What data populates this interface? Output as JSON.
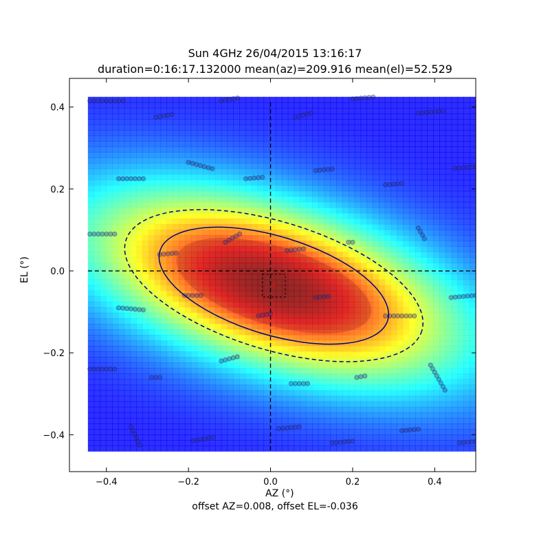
{
  "chart_data": {
    "type": "heatmap",
    "title": "Sun 4GHz 26/04/2015 13:16:17",
    "subtitle": "duration=0:16:17.132000 mean(az)=209.916 mean(el)=52.529",
    "xlabel": "AZ (°)",
    "ylabel": "EL (°)",
    "footer": "offset AZ=0.008, offset EL=-0.036",
    "xlim": [
      -0.49,
      0.5
    ],
    "ylim": [
      -0.49,
      0.47
    ],
    "xticks": [
      "−0.4",
      "−0.2",
      "0.0",
      "0.2",
      "0.4"
    ],
    "xtick_values": [
      -0.4,
      -0.2,
      0.0,
      0.2,
      0.4
    ],
    "yticks": [
      "−0.4",
      "−0.2",
      "0.0",
      "0.2",
      "0.4"
    ],
    "ytick_values": [
      -0.4,
      -0.2,
      0.0,
      0.2,
      0.4
    ],
    "heatmap_extent": {
      "x": [
        -0.445,
        0.5
      ],
      "y": [
        -0.44,
        0.425
      ]
    },
    "colormap": "jet",
    "beam_fit": {
      "center": [
        0.008,
        -0.036
      ],
      "semi_major": 0.29,
      "semi_minor": 0.12,
      "angle_deg": -17
    },
    "contours": [
      {
        "name": "half-power",
        "scale": 1.0,
        "style": "solid",
        "color": "#00007f"
      },
      {
        "name": "outer",
        "scale": 1.3,
        "style": "dashed",
        "color": "#00007f"
      }
    ],
    "crosshair": {
      "x": 0.0,
      "y": 0.0
    },
    "offset_marker": {
      "x": 0.008,
      "y": -0.036,
      "box_half": 0.028,
      "color": "#ff0000"
    },
    "scan_points": [
      {
        "x": -0.44,
        "y": 0.415,
        "angle": 0,
        "n": 9
      },
      {
        "x": -0.12,
        "y": 0.415,
        "angle": 10,
        "n": 5
      },
      {
        "x": -0.28,
        "y": 0.375,
        "angle": 10,
        "n": 5
      },
      {
        "x": 0.06,
        "y": 0.375,
        "angle": 15,
        "n": 5
      },
      {
        "x": 0.2,
        "y": 0.42,
        "angle": 5,
        "n": 6
      },
      {
        "x": 0.36,
        "y": 0.385,
        "angle": 5,
        "n": 7
      },
      {
        "x": -0.2,
        "y": 0.265,
        "angle": -15,
        "n": 7
      },
      {
        "x": -0.37,
        "y": 0.225,
        "angle": 0,
        "n": 7
      },
      {
        "x": -0.06,
        "y": 0.225,
        "angle": 5,
        "n": 5
      },
      {
        "x": 0.11,
        "y": 0.245,
        "angle": 5,
        "n": 5
      },
      {
        "x": 0.28,
        "y": 0.21,
        "angle": 5,
        "n": 5
      },
      {
        "x": 0.45,
        "y": 0.25,
        "angle": 5,
        "n": 8
      },
      {
        "x": -0.44,
        "y": 0.09,
        "angle": 0,
        "n": 7
      },
      {
        "x": -0.11,
        "y": 0.07,
        "angle": 30,
        "n": 5
      },
      {
        "x": -0.27,
        "y": 0.04,
        "angle": 5,
        "n": 5
      },
      {
        "x": 0.04,
        "y": 0.05,
        "angle": 5,
        "n": 5
      },
      {
        "x": 0.19,
        "y": 0.07,
        "angle": 0,
        "n": 2
      },
      {
        "x": 0.36,
        "y": 0.105,
        "angle": -60,
        "n": 4
      },
      {
        "x": -0.37,
        "y": -0.09,
        "angle": -5,
        "n": 7
      },
      {
        "x": -0.21,
        "y": -0.06,
        "angle": 0,
        "n": 5
      },
      {
        "x": -0.03,
        "y": -0.11,
        "angle": 10,
        "n": 4
      },
      {
        "x": 0.11,
        "y": -0.065,
        "angle": 5,
        "n": 4
      },
      {
        "x": 0.28,
        "y": -0.11,
        "angle": 0,
        "n": 8
      },
      {
        "x": 0.44,
        "y": -0.065,
        "angle": 5,
        "n": 8
      },
      {
        "x": -0.44,
        "y": -0.24,
        "angle": 0,
        "n": 7
      },
      {
        "x": -0.29,
        "y": -0.26,
        "angle": 0,
        "n": 3
      },
      {
        "x": -0.12,
        "y": -0.22,
        "angle": 15,
        "n": 5
      },
      {
        "x": 0.05,
        "y": -0.275,
        "angle": 0,
        "n": 5
      },
      {
        "x": 0.21,
        "y": -0.26,
        "angle": 10,
        "n": 3
      },
      {
        "x": 0.39,
        "y": -0.23,
        "angle": -60,
        "n": 8
      },
      {
        "x": -0.34,
        "y": -0.38,
        "angle": -65,
        "n": 6
      },
      {
        "x": -0.19,
        "y": -0.415,
        "angle": 10,
        "n": 6
      },
      {
        "x": 0.02,
        "y": -0.385,
        "angle": 5,
        "n": 6
      },
      {
        "x": 0.15,
        "y": -0.42,
        "angle": 5,
        "n": 6
      },
      {
        "x": 0.32,
        "y": -0.39,
        "angle": 5,
        "n": 5
      },
      {
        "x": 0.46,
        "y": -0.42,
        "angle": 5,
        "n": 7
      }
    ]
  }
}
